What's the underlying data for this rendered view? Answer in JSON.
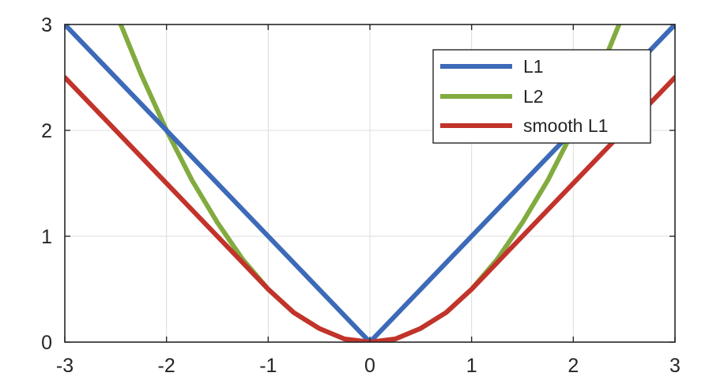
{
  "chart_data": {
    "type": "line",
    "title": "",
    "xlabel": "",
    "ylabel": "",
    "xlim": [
      -3,
      3
    ],
    "ylim": [
      0,
      3
    ],
    "x_ticks": [
      "-3",
      "-2",
      "-1",
      "0",
      "1",
      "2",
      "3"
    ],
    "y_ticks": [
      "0",
      "1",
      "2",
      "3"
    ],
    "grid": true,
    "legend_position": "top-right",
    "series": [
      {
        "name": "L1",
        "color": "#3d6ab8",
        "x": [
          -3,
          0,
          3
        ],
        "y": [
          3,
          0,
          3
        ]
      },
      {
        "name": "L2",
        "color": "#82ab3f",
        "x": [
          -2.45,
          -2.25,
          -2,
          -1.75,
          -1.5,
          -1.25,
          -1,
          -0.75,
          -0.5,
          -0.25,
          0,
          0.25,
          0.5,
          0.75,
          1,
          1.25,
          1.5,
          1.75,
          2,
          2.25,
          2.45
        ],
        "y": [
          3.0,
          2.53,
          2.0,
          1.53,
          1.13,
          0.78,
          0.5,
          0.28,
          0.13,
          0.03,
          0,
          0.03,
          0.13,
          0.28,
          0.5,
          0.78,
          1.13,
          1.53,
          2.0,
          2.53,
          3.0
        ]
      },
      {
        "name": "smooth L1",
        "color": "#c2332b",
        "x": [
          -3,
          -2,
          -1,
          -0.75,
          -0.5,
          -0.25,
          0,
          0.25,
          0.5,
          0.75,
          1,
          2,
          3
        ],
        "y": [
          2.5,
          1.5,
          0.5,
          0.28,
          0.13,
          0.03,
          0,
          0.03,
          0.13,
          0.28,
          0.5,
          1.5,
          2.5
        ]
      }
    ]
  }
}
